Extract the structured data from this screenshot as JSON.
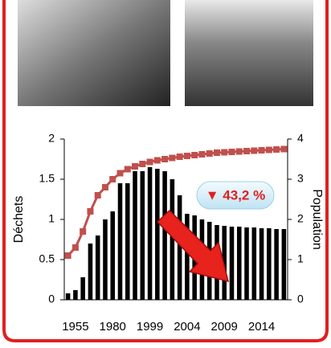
{
  "chart_data": {
    "type": "bar",
    "y_label": "Déchets",
    "y2_label": "Population",
    "annotation": "▼ 43,2 %",
    "categories": [
      null,
      "1955",
      null,
      null,
      null,
      null,
      "1980",
      null,
      null,
      null,
      null,
      "1999",
      null,
      null,
      null,
      null,
      "2004",
      null,
      null,
      null,
      null,
      "2009",
      null,
      null,
      null,
      null,
      "2014",
      null,
      null,
      null
    ],
    "series": [
      {
        "type": "bar",
        "color": "#000000",
        "values": [
          0.08,
          0.12,
          0.28,
          0.7,
          0.8,
          1.0,
          1.1,
          1.45,
          1.45,
          1.6,
          1.6,
          1.65,
          1.63,
          1.6,
          1.5,
          1.3,
          1.07,
          1.05,
          1.0,
          0.97,
          0.93,
          0.92,
          0.91,
          0.91,
          0.9,
          0.9,
          0.89,
          0.89,
          0.88,
          0.88
        ]
      },
      {
        "type": "line",
        "axis": "y2",
        "color": "#c0504d",
        "values": [
          1.1,
          1.3,
          1.7,
          2.2,
          2.6,
          2.8,
          3.0,
          3.15,
          3.25,
          3.32,
          3.38,
          3.43,
          3.47,
          3.5,
          3.53,
          3.56,
          3.58,
          3.6,
          3.62,
          3.64,
          3.66,
          3.67,
          3.68,
          3.69,
          3.7,
          3.71,
          3.72,
          3.73,
          3.74,
          3.75
        ]
      }
    ],
    "ylim": [
      0,
      2
    ],
    "yticks": [
      0,
      0.5,
      1,
      1.5,
      2
    ],
    "y2lim": [
      0,
      4
    ],
    "y2ticks": [
      0,
      1,
      2,
      3,
      4
    ]
  }
}
